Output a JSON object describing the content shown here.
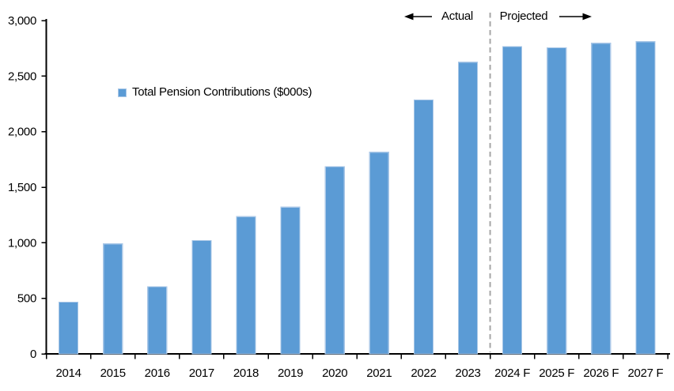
{
  "chart_data": {
    "type": "bar",
    "title": "",
    "legend": "Total Pension Contributions ($000s)",
    "legend_position": "inside-upper-left",
    "categories": [
      "2014",
      "2015",
      "2016",
      "2017",
      "2018",
      "2019",
      "2020",
      "2021",
      "2022",
      "2023",
      "2024 F",
      "2025 F",
      "2026 F",
      "2027 F"
    ],
    "values": [
      465,
      990,
      605,
      1020,
      1235,
      1320,
      1685,
      1815,
      2285,
      2625,
      2765,
      2755,
      2795,
      2810
    ],
    "xlabel": "",
    "ylabel": "",
    "ylim": [
      0,
      3000
    ],
    "grid": false,
    "y_ticks": [
      {
        "value": 0,
        "label": "0"
      },
      {
        "value": 500,
        "label": "500"
      },
      {
        "value": 1000,
        "label": "1,000"
      },
      {
        "value": 1500,
        "label": "1,500"
      },
      {
        "value": 2000,
        "label": "2,000"
      },
      {
        "value": 2500,
        "label": "2,500"
      },
      {
        "value": 3000,
        "label": "3,000"
      }
    ],
    "annotations": {
      "actual": "Actual",
      "projected": "Projected"
    },
    "divider_after_category": "2023",
    "colors": {
      "bar_fill": "#5B9BD5",
      "bar_border": "#A9C7E7",
      "divider": "#A6A6A6",
      "axis": "#000000",
      "text": "#000000"
    }
  }
}
